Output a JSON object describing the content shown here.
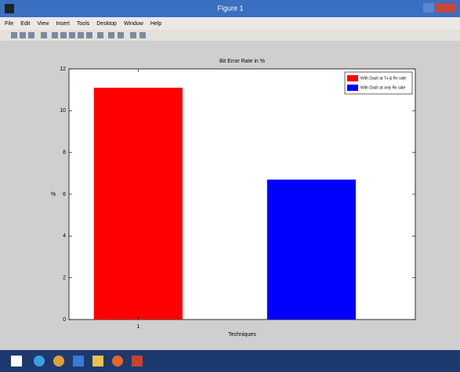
{
  "window": {
    "title": "Figure 1",
    "menu": [
      "File",
      "Edit",
      "View",
      "Insert",
      "Tools",
      "Desktop",
      "Window",
      "Help"
    ]
  },
  "chart_data": {
    "type": "bar",
    "title": "Bit Error Rate in %",
    "xlabel": "Techniques",
    "ylabel": "%",
    "categories": [
      "1"
    ],
    "series": [
      {
        "name": "With Dash at Tx & Rx side",
        "color": "#ff0000",
        "values": [
          11.1
        ]
      },
      {
        "name": "With Dash at only Rx side",
        "color": "#0000ff",
        "values": [
          6.7
        ]
      }
    ],
    "ylim": [
      0,
      12
    ],
    "yticks": [
      0,
      2,
      4,
      6,
      8,
      10,
      12
    ],
    "legend": "upper right"
  }
}
